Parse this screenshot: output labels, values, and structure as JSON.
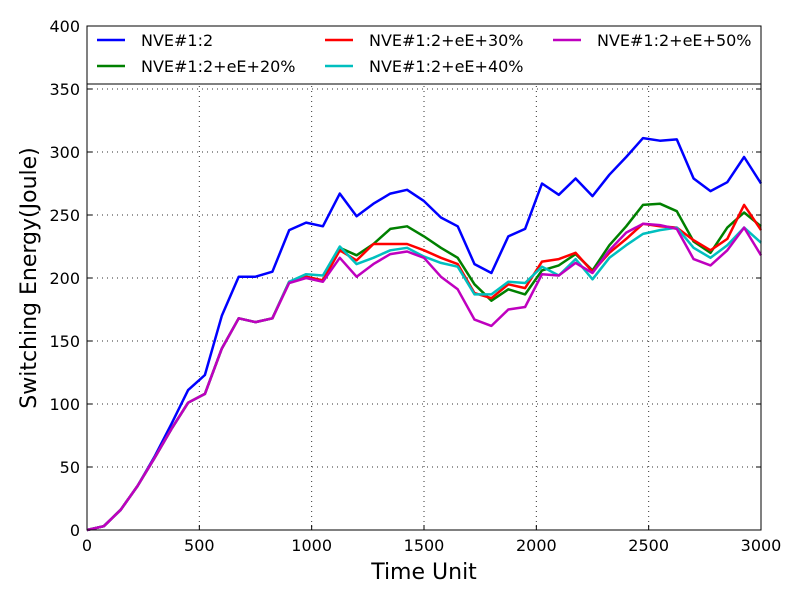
{
  "chart_data": {
    "type": "line",
    "xlabel": "Time Unit",
    "ylabel": "Switching Energy(Joule)",
    "xlim": [
      0,
      3000
    ],
    "ylim": [
      0,
      400
    ],
    "xticks": [
      0,
      500,
      1000,
      1500,
      2000,
      2500,
      3000
    ],
    "yticks": [
      0,
      50,
      100,
      150,
      200,
      250,
      300,
      350,
      400
    ],
    "grid": true,
    "legend_position": "top",
    "x": [
      0,
      75,
      150,
      225,
      300,
      375,
      450,
      525,
      600,
      675,
      750,
      825,
      900,
      975,
      1050,
      1125,
      1200,
      1275,
      1350,
      1425,
      1500,
      1575,
      1650,
      1725,
      1800,
      1875,
      1950,
      2025,
      2100,
      2175,
      2250,
      2325,
      2400,
      2475,
      2550,
      2625,
      2700,
      2775,
      2850,
      2925,
      3000
    ],
    "series": [
      {
        "name": "NVE#1:2",
        "color": "#0000ff",
        "values": [
          0,
          3,
          16,
          35,
          58,
          84,
          111,
          123,
          170,
          201,
          201,
          205,
          238,
          244,
          241,
          267,
          249,
          259,
          267,
          270,
          261,
          248,
          241,
          211,
          204,
          233,
          239,
          275,
          266,
          279,
          265,
          282,
          296,
          311,
          309,
          310,
          279,
          269,
          276,
          296,
          275
        ]
      },
      {
        "name": "NVE#1:2+eE+20%",
        "color": "#008000",
        "values": [
          0,
          3,
          16,
          35,
          57,
          80,
          101,
          108,
          144,
          168,
          165,
          168,
          197,
          201,
          198,
          224,
          218,
          227,
          239,
          241,
          233,
          224,
          216,
          195,
          182,
          191,
          187,
          206,
          210,
          219,
          206,
          226,
          241,
          258,
          259,
          253,
          229,
          220,
          240,
          252,
          241
        ]
      },
      {
        "name": "NVE#1:2+eE+30%",
        "color": "#ff0000",
        "values": [
          0,
          3,
          16,
          35,
          57,
          80,
          101,
          108,
          144,
          168,
          165,
          168,
          197,
          201,
          198,
          222,
          214,
          227,
          227,
          227,
          222,
          216,
          211,
          188,
          184,
          195,
          192,
          213,
          215,
          220,
          205,
          220,
          231,
          243,
          241,
          240,
          230,
          222,
          231,
          258,
          238
        ]
      },
      {
        "name": "NVE#1:2+eE+40%",
        "color": "#00bfbf",
        "values": [
          0,
          3,
          16,
          35,
          57,
          80,
          101,
          108,
          144,
          168,
          165,
          168,
          197,
          203,
          202,
          225,
          211,
          216,
          222,
          224,
          217,
          212,
          209,
          187,
          187,
          197,
          196,
          209,
          202,
          215,
          199,
          216,
          226,
          235,
          238,
          240,
          224,
          216,
          226,
          240,
          228
        ]
      },
      {
        "name": "NVE#1:2+eE+50%",
        "color": "#bf00bf",
        "values": [
          0,
          3,
          16,
          35,
          57,
          80,
          101,
          108,
          144,
          168,
          165,
          168,
          196,
          200,
          197,
          216,
          201,
          211,
          219,
          221,
          216,
          201,
          191,
          167,
          162,
          175,
          177,
          203,
          202,
          212,
          204,
          222,
          236,
          243,
          242,
          239,
          215,
          210,
          222,
          240,
          218
        ]
      }
    ]
  }
}
